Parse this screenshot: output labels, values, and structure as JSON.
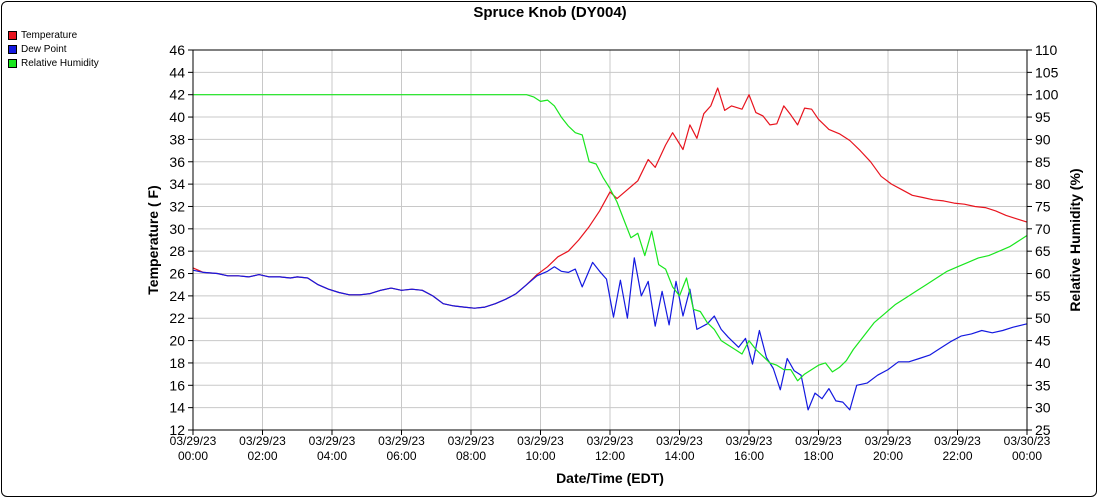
{
  "chart_data": {
    "type": "line",
    "title": "Spruce Knob (DY004)",
    "xlabel": "Date/Time (EDT)",
    "ylabel": "Temperature ( F)",
    "y2label": "Relative Humidity (%)",
    "ylim": [
      12,
      46
    ],
    "y2lim": [
      25,
      110
    ],
    "yticks": [
      12,
      14,
      16,
      18,
      20,
      22,
      24,
      26,
      28,
      30,
      32,
      34,
      36,
      38,
      40,
      42,
      44,
      46
    ],
    "y2ticks": [
      25,
      30,
      35,
      40,
      45,
      50,
      55,
      60,
      65,
      70,
      75,
      80,
      85,
      90,
      95,
      100,
      105,
      110
    ],
    "xlim": [
      0,
      24
    ],
    "xticks": [
      {
        "hour": 0,
        "date": "03/29/23",
        "time": "00:00"
      },
      {
        "hour": 2,
        "date": "03/29/23",
        "time": "02:00"
      },
      {
        "hour": 4,
        "date": "03/29/23",
        "time": "04:00"
      },
      {
        "hour": 6,
        "date": "03/29/23",
        "time": "06:00"
      },
      {
        "hour": 8,
        "date": "03/29/23",
        "time": "08:00"
      },
      {
        "hour": 10,
        "date": "03/29/23",
        "time": "10:00"
      },
      {
        "hour": 12,
        "date": "03/29/23",
        "time": "12:00"
      },
      {
        "hour": 14,
        "date": "03/29/23",
        "time": "14:00"
      },
      {
        "hour": 16,
        "date": "03/29/23",
        "time": "16:00"
      },
      {
        "hour": 18,
        "date": "03/29/23",
        "time": "18:00"
      },
      {
        "hour": 20,
        "date": "03/29/23",
        "time": "20:00"
      },
      {
        "hour": 22,
        "date": "03/29/23",
        "time": "22:00"
      },
      {
        "hour": 24,
        "date": "03/30/23",
        "time": "00:00"
      }
    ],
    "grid": true,
    "legend_position": "top-left",
    "series": [
      {
        "name": "Temperature",
        "color": "#e8141e",
        "axis": "left",
        "points": [
          [
            0,
            26.5
          ],
          [
            0.3,
            26.1
          ],
          [
            0.7,
            26.0
          ],
          [
            1.0,
            25.8
          ],
          [
            1.3,
            25.8
          ],
          [
            1.6,
            25.7
          ],
          [
            1.9,
            25.9
          ],
          [
            2.2,
            25.7
          ],
          [
            2.5,
            25.7
          ],
          [
            2.8,
            25.6
          ],
          [
            3.0,
            25.7
          ],
          [
            3.3,
            25.6
          ],
          [
            3.6,
            25.0
          ],
          [
            3.9,
            24.6
          ],
          [
            4.2,
            24.3
          ],
          [
            4.5,
            24.1
          ],
          [
            4.8,
            24.1
          ],
          [
            5.1,
            24.2
          ],
          [
            5.4,
            24.5
          ],
          [
            5.7,
            24.7
          ],
          [
            6.0,
            24.5
          ],
          [
            6.3,
            24.6
          ],
          [
            6.6,
            24.5
          ],
          [
            6.9,
            24.0
          ],
          [
            7.2,
            23.3
          ],
          [
            7.5,
            23.1
          ],
          [
            7.8,
            23.0
          ],
          [
            8.1,
            22.9
          ],
          [
            8.4,
            23.0
          ],
          [
            8.7,
            23.3
          ],
          [
            9.0,
            23.7
          ],
          [
            9.3,
            24.2
          ],
          [
            9.6,
            25.0
          ],
          [
            9.9,
            25.9
          ],
          [
            10.2,
            26.6
          ],
          [
            10.5,
            27.5
          ],
          [
            10.8,
            28.0
          ],
          [
            11.1,
            29.0
          ],
          [
            11.4,
            30.2
          ],
          [
            11.7,
            31.6
          ],
          [
            12.0,
            33.3
          ],
          [
            12.2,
            32.7
          ],
          [
            12.5,
            33.5
          ],
          [
            12.8,
            34.3
          ],
          [
            13.1,
            36.2
          ],
          [
            13.3,
            35.5
          ],
          [
            13.6,
            37.5
          ],
          [
            13.8,
            38.6
          ],
          [
            14.1,
            37.1
          ],
          [
            14.3,
            39.3
          ],
          [
            14.5,
            38.1
          ],
          [
            14.7,
            40.3
          ],
          [
            14.9,
            41.0
          ],
          [
            15.1,
            42.6
          ],
          [
            15.3,
            40.6
          ],
          [
            15.5,
            41.0
          ],
          [
            15.8,
            40.7
          ],
          [
            16.0,
            42.0
          ],
          [
            16.2,
            40.4
          ],
          [
            16.4,
            40.1
          ],
          [
            16.6,
            39.3
          ],
          [
            16.8,
            39.4
          ],
          [
            17.0,
            41.0
          ],
          [
            17.2,
            40.2
          ],
          [
            17.4,
            39.3
          ],
          [
            17.6,
            40.8
          ],
          [
            17.8,
            40.7
          ],
          [
            18.0,
            39.8
          ],
          [
            18.3,
            38.9
          ],
          [
            18.6,
            38.5
          ],
          [
            18.9,
            37.9
          ],
          [
            19.2,
            37.0
          ],
          [
            19.5,
            36.0
          ],
          [
            19.8,
            34.7
          ],
          [
            20.1,
            34.0
          ],
          [
            20.4,
            33.5
          ],
          [
            20.7,
            33.0
          ],
          [
            21.0,
            32.8
          ],
          [
            21.3,
            32.6
          ],
          [
            21.6,
            32.5
          ],
          [
            21.9,
            32.3
          ],
          [
            22.2,
            32.2
          ],
          [
            22.5,
            32.0
          ],
          [
            22.8,
            31.9
          ],
          [
            23.1,
            31.6
          ],
          [
            23.4,
            31.2
          ],
          [
            23.7,
            30.9
          ],
          [
            24.0,
            30.6
          ]
        ]
      },
      {
        "name": "Dew Point",
        "color": "#1419e0",
        "axis": "left",
        "points": [
          [
            0,
            26.3
          ],
          [
            0.3,
            26.1
          ],
          [
            0.7,
            26.0
          ],
          [
            1.0,
            25.8
          ],
          [
            1.3,
            25.8
          ],
          [
            1.6,
            25.7
          ],
          [
            1.9,
            25.9
          ],
          [
            2.2,
            25.7
          ],
          [
            2.5,
            25.7
          ],
          [
            2.8,
            25.6
          ],
          [
            3.0,
            25.7
          ],
          [
            3.3,
            25.6
          ],
          [
            3.6,
            25.0
          ],
          [
            3.9,
            24.6
          ],
          [
            4.2,
            24.3
          ],
          [
            4.5,
            24.1
          ],
          [
            4.8,
            24.1
          ],
          [
            5.1,
            24.2
          ],
          [
            5.4,
            24.5
          ],
          [
            5.7,
            24.7
          ],
          [
            6.0,
            24.5
          ],
          [
            6.3,
            24.6
          ],
          [
            6.6,
            24.5
          ],
          [
            6.9,
            24.0
          ],
          [
            7.2,
            23.3
          ],
          [
            7.5,
            23.1
          ],
          [
            7.8,
            23.0
          ],
          [
            8.1,
            22.9
          ],
          [
            8.4,
            23.0
          ],
          [
            8.7,
            23.3
          ],
          [
            9.0,
            23.7
          ],
          [
            9.3,
            24.2
          ],
          [
            9.6,
            25.0
          ],
          [
            9.9,
            25.8
          ],
          [
            10.2,
            26.2
          ],
          [
            10.4,
            26.6
          ],
          [
            10.6,
            26.2
          ],
          [
            10.8,
            26.1
          ],
          [
            11.0,
            26.4
          ],
          [
            11.2,
            24.8
          ],
          [
            11.5,
            27.0
          ],
          [
            11.7,
            26.2
          ],
          [
            11.9,
            25.5
          ],
          [
            12.1,
            22.1
          ],
          [
            12.3,
            25.4
          ],
          [
            12.5,
            22.0
          ],
          [
            12.7,
            27.4
          ],
          [
            12.9,
            24.0
          ],
          [
            13.1,
            25.3
          ],
          [
            13.3,
            21.3
          ],
          [
            13.5,
            24.4
          ],
          [
            13.7,
            21.4
          ],
          [
            13.9,
            25.3
          ],
          [
            14.1,
            22.2
          ],
          [
            14.3,
            24.6
          ],
          [
            14.5,
            21.0
          ],
          [
            14.8,
            21.5
          ],
          [
            15.0,
            22.2
          ],
          [
            15.2,
            21.0
          ],
          [
            15.4,
            20.3
          ],
          [
            15.7,
            19.4
          ],
          [
            15.9,
            20.2
          ],
          [
            16.1,
            17.9
          ],
          [
            16.3,
            20.9
          ],
          [
            16.5,
            18.5
          ],
          [
            16.7,
            17.5
          ],
          [
            16.9,
            15.6
          ],
          [
            17.1,
            18.4
          ],
          [
            17.3,
            17.3
          ],
          [
            17.5,
            16.9
          ],
          [
            17.7,
            13.8
          ],
          [
            17.9,
            15.3
          ],
          [
            18.1,
            14.8
          ],
          [
            18.3,
            15.7
          ],
          [
            18.5,
            14.6
          ],
          [
            18.7,
            14.5
          ],
          [
            18.9,
            13.8
          ],
          [
            19.1,
            16.0
          ],
          [
            19.4,
            16.2
          ],
          [
            19.7,
            16.9
          ],
          [
            20.0,
            17.4
          ],
          [
            20.3,
            18.1
          ],
          [
            20.6,
            18.1
          ],
          [
            20.9,
            18.4
          ],
          [
            21.2,
            18.7
          ],
          [
            21.5,
            19.3
          ],
          [
            21.8,
            19.9
          ],
          [
            22.1,
            20.4
          ],
          [
            22.4,
            20.6
          ],
          [
            22.7,
            20.9
          ],
          [
            23.0,
            20.7
          ],
          [
            23.3,
            20.9
          ],
          [
            23.6,
            21.2
          ],
          [
            24.0,
            21.5
          ]
        ]
      },
      {
        "name": "Relative Humidity",
        "color": "#19e61e",
        "axis": "right",
        "points": [
          [
            0,
            100
          ],
          [
            9.6,
            100
          ],
          [
            9.8,
            99.5
          ],
          [
            10.0,
            98.5
          ],
          [
            10.2,
            98.8
          ],
          [
            10.4,
            97.5
          ],
          [
            10.6,
            95
          ],
          [
            10.8,
            93
          ],
          [
            11.0,
            91.5
          ],
          [
            11.2,
            91
          ],
          [
            11.4,
            85
          ],
          [
            11.6,
            84.5
          ],
          [
            11.8,
            81.5
          ],
          [
            12.0,
            79
          ],
          [
            12.2,
            76
          ],
          [
            12.4,
            72
          ],
          [
            12.6,
            68
          ],
          [
            12.8,
            69
          ],
          [
            13.0,
            64
          ],
          [
            13.2,
            69.5
          ],
          [
            13.4,
            62
          ],
          [
            13.6,
            61
          ],
          [
            13.8,
            57
          ],
          [
            14.0,
            55
          ],
          [
            14.2,
            59
          ],
          [
            14.4,
            52
          ],
          [
            14.6,
            51.5
          ],
          [
            14.8,
            49
          ],
          [
            15.0,
            47.5
          ],
          [
            15.2,
            45
          ],
          [
            15.4,
            44
          ],
          [
            15.6,
            43
          ],
          [
            15.8,
            42
          ],
          [
            16.0,
            45
          ],
          [
            16.2,
            43
          ],
          [
            16.4,
            41.5
          ],
          [
            16.6,
            40
          ],
          [
            16.8,
            39.5
          ],
          [
            17.0,
            38.5
          ],
          [
            17.2,
            38.5
          ],
          [
            17.4,
            36
          ],
          [
            17.6,
            37.5
          ],
          [
            17.8,
            38.5
          ],
          [
            18.0,
            39.5
          ],
          [
            18.2,
            40
          ],
          [
            18.4,
            38
          ],
          [
            18.6,
            39
          ],
          [
            18.8,
            40.5
          ],
          [
            19.0,
            43
          ],
          [
            19.3,
            46
          ],
          [
            19.6,
            49
          ],
          [
            19.9,
            51
          ],
          [
            20.2,
            53
          ],
          [
            20.5,
            54.5
          ],
          [
            20.8,
            56
          ],
          [
            21.1,
            57.5
          ],
          [
            21.4,
            59
          ],
          [
            21.7,
            60.5
          ],
          [
            22.0,
            61.5
          ],
          [
            22.3,
            62.5
          ],
          [
            22.6,
            63.5
          ],
          [
            22.9,
            64
          ],
          [
            23.2,
            65
          ],
          [
            23.5,
            66
          ],
          [
            23.8,
            67.5
          ],
          [
            24.0,
            68.5
          ]
        ]
      }
    ]
  }
}
